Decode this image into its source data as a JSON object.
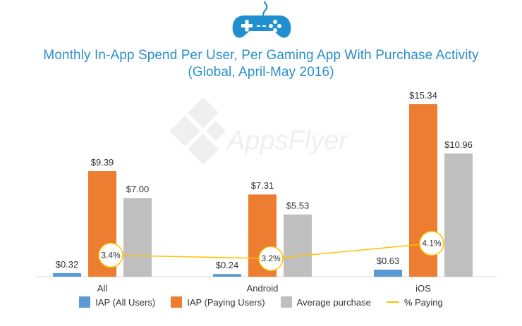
{
  "colors": {
    "title": "#2a8fca",
    "all_users": "#5b9bd5",
    "paying_users": "#ed7d31",
    "average": "#bfbfbf",
    "paying_pct": "#ffc000",
    "icon": "#1f8fcf"
  },
  "icon": "gamepad-icon",
  "watermark": "AppsFlyer",
  "chart_data": {
    "type": "bar",
    "title": "Monthly In-App Spend Per User, Per Gaming App With Purchase Activity",
    "subtitle": "(Global, April-May 2016)",
    "categories": [
      "All",
      "Android",
      "iOS"
    ],
    "series": [
      {
        "name": "IAP (All Users)",
        "values": [
          0.32,
          0.24,
          0.63
        ],
        "labels": [
          "$0.32",
          "$0.24",
          "$0.63"
        ]
      },
      {
        "name": "IAP (Paying Users)",
        "values": [
          9.39,
          7.31,
          15.34
        ],
        "labels": [
          "$9.39",
          "$7.31",
          "$15.34"
        ]
      },
      {
        "name": "Average purchase",
        "values": [
          7.0,
          5.53,
          10.96
        ],
        "labels": [
          "$7.00",
          "$5.53",
          "$10.96"
        ]
      }
    ],
    "line_series": {
      "name": "% Paying",
      "values": [
        3.4,
        3.2,
        4.1
      ],
      "labels": [
        "3.4%",
        "3.2%",
        "4.1%"
      ]
    },
    "legend_position": "bottom",
    "grid": false,
    "ylim": [
      0,
      16
    ]
  }
}
